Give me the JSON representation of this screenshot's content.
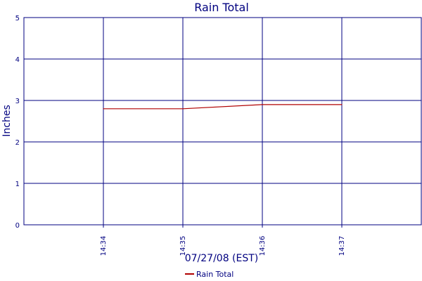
{
  "chart_data": {
    "type": "line",
    "title": "Rain Total",
    "xlabel": "07/27/08 (EST)",
    "ylabel": "Inches",
    "x_ticks": [
      "14:34",
      "14:35",
      "14:36",
      "14:37"
    ],
    "xlim": [
      "14:33",
      "14:38"
    ],
    "ylim": [
      0,
      5
    ],
    "y_ticks": [
      0,
      1,
      2,
      3,
      4,
      5
    ],
    "grid": true,
    "legend_position": "bottom-center",
    "series": [
      {
        "name": "Rain Total",
        "color": "#b00000",
        "x": [
          "14:34",
          "14:35",
          "14:36",
          "14:37"
        ],
        "values": [
          2.8,
          2.8,
          2.9,
          2.9
        ]
      }
    ]
  }
}
